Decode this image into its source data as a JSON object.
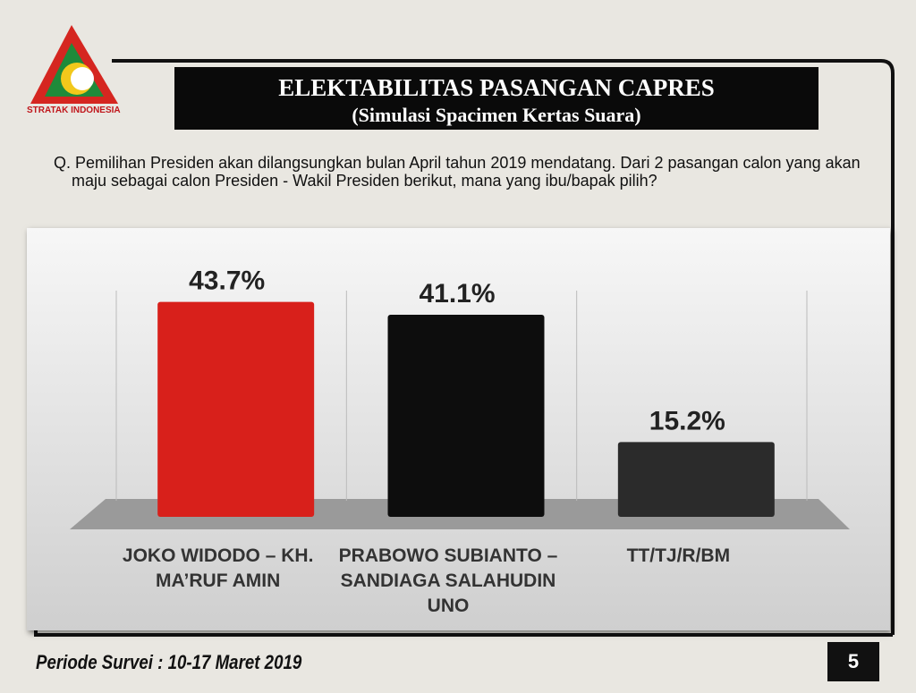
{
  "logo_text": "STRATAK INDONESIA",
  "question": "Q. Pemilihan Presiden akan dilangsungkan bulan April tahun 2019 mendatang. Dari 2 pasangan calon yang akan maju sebagai calon Presiden - Wakil Presiden berikut, mana yang ibu/bapak pilih?",
  "footer": "Periode Survei : 10-17 Maret 2019",
  "page_number": 5,
  "chart_data": {
    "type": "bar",
    "title": "ELEKTABILITAS PASANGAN CAPRES",
    "subtitle": "(Simulasi Spacimen Kertas Suara)",
    "categories": [
      "JOKO WIDODO – KH. MA’RUF AMIN",
      "PRABOWO SUBIANTO – SANDIAGA SALAHUDIN UNO",
      "TT/TJ/R/BM"
    ],
    "values": [
      43.7,
      41.1,
      15.2
    ],
    "value_labels": [
      "43.7%",
      "41.1%",
      "15.2%"
    ],
    "colors": [
      "#d8201b",
      "#0d0d0d",
      "#2b2b2b"
    ],
    "ylim": [
      0,
      50
    ]
  }
}
